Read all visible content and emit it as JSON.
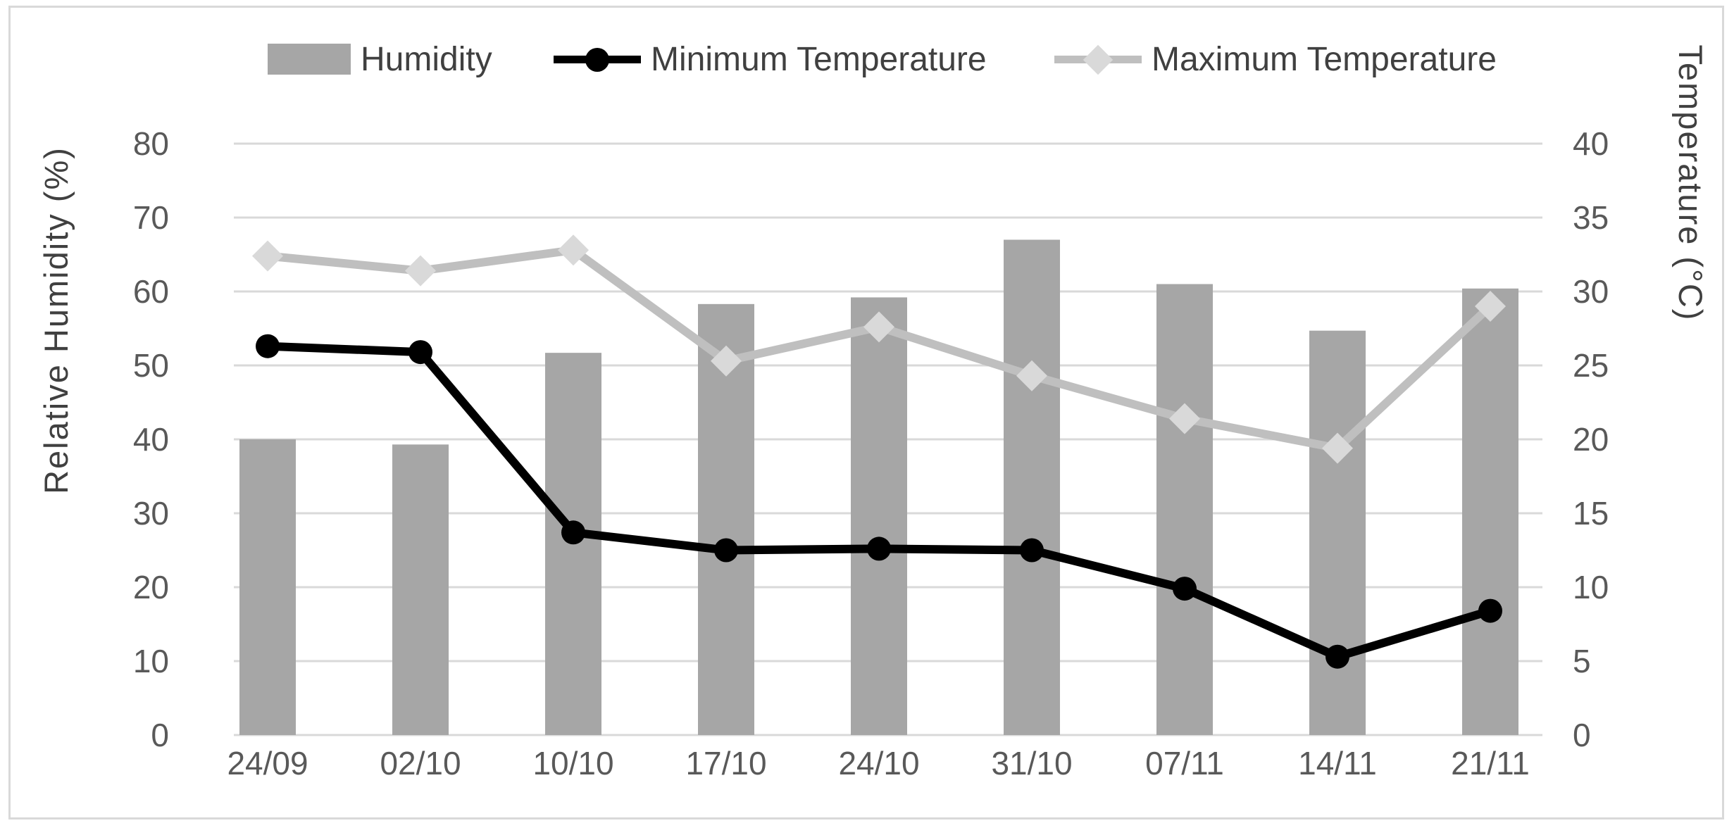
{
  "figure": {
    "background": "#ffffff",
    "border_color": "#d9d9d9"
  },
  "chart_data": {
    "type": "combo",
    "categories": [
      "24/09",
      "02/10",
      "10/10",
      "17/10",
      "24/10",
      "31/10",
      "07/11",
      "14/11",
      "21/11"
    ],
    "series": [
      {
        "name": "Humidity",
        "type": "bar",
        "axis": "left",
        "unit": "%",
        "color": "#a6a6a6",
        "values": [
          40.0,
          39.3,
          51.7,
          58.3,
          59.2,
          67.0,
          61.0,
          54.7,
          60.4
        ]
      },
      {
        "name": "Minimum Temperature",
        "type": "line",
        "axis": "right",
        "unit": "°C",
        "color": "#000000",
        "marker": "circle",
        "marker_color": "#000000",
        "values": [
          26.3,
          25.9,
          13.7,
          12.5,
          12.6,
          12.5,
          9.9,
          5.3,
          8.4
        ]
      },
      {
        "name": "Maximum Temperature",
        "type": "line",
        "axis": "right",
        "unit": "°C",
        "color": "#bfbfbf",
        "marker": "diamond",
        "marker_color": "#d9d9d9",
        "values": [
          32.4,
          31.4,
          32.8,
          25.3,
          27.6,
          24.3,
          21.4,
          19.4,
          29.0
        ]
      }
    ],
    "left_axis": {
      "title": "Relative Humidity (%)",
      "min": 0,
      "max": 80,
      "step": 10,
      "ticks": [
        0,
        10,
        20,
        30,
        40,
        50,
        60,
        70,
        80
      ]
    },
    "right_axis": {
      "title": "Temperature (°C)",
      "min": 0,
      "max": 40,
      "step": 5,
      "ticks": [
        0,
        5,
        10,
        15,
        20,
        25,
        30,
        35,
        40
      ]
    },
    "grid": true,
    "legend_position": "top",
    "gridline_color": "#d9d9d9",
    "tick_color": "#595959",
    "text_color": "#404040"
  }
}
